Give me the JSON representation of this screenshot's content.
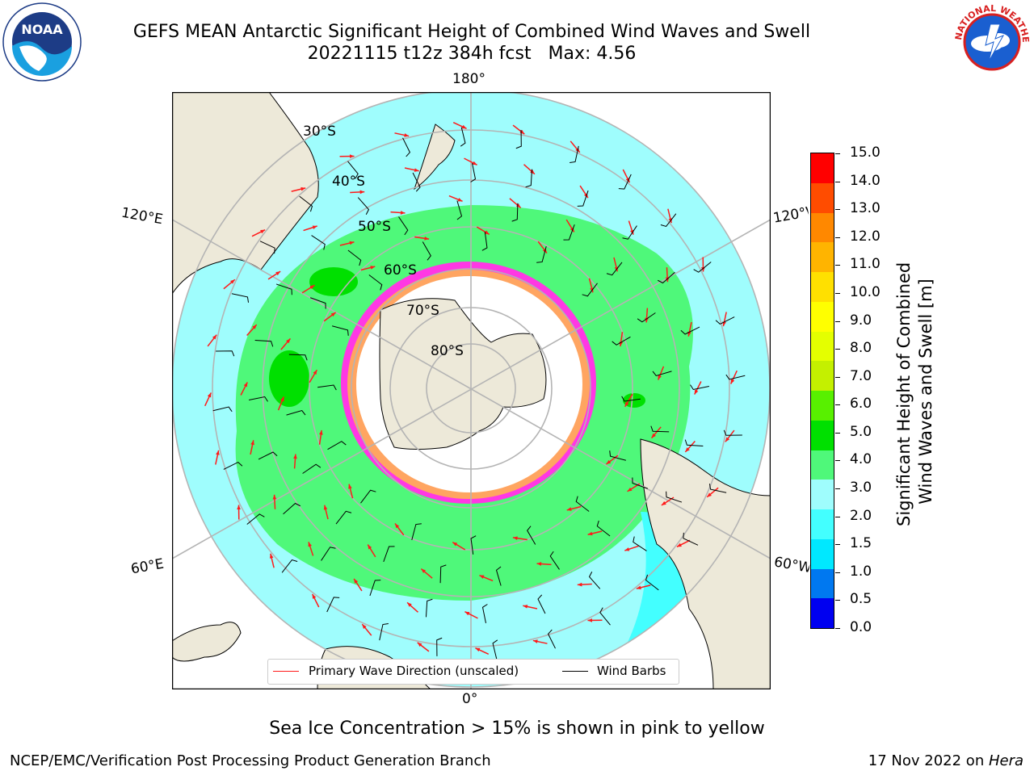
{
  "title_line1": "GEFS MEAN Antarctic Significant Height of Combined Wind Waves and Swell",
  "title_line2": "20221115 t12z 384h fcst   Max: 4.56",
  "logos": {
    "left": "NOAA",
    "right": "NATIONAL WEATHER SERVICE"
  },
  "map": {
    "projection": "south polar stereographic",
    "longitude_labels": {
      "top": "180°",
      "bottom": "0°",
      "left_upper": "120°E",
      "left_lower": "60°E",
      "right_upper": "120°W",
      "right_lower": "60°W"
    },
    "latitude_labels": [
      "30°S",
      "40°S",
      "50°S",
      "60°S",
      "70°S",
      "80°S"
    ],
    "colors": {
      "land": "#ede9d9",
      "ice_free_ocean_low": "#9ffdfd",
      "green_band": "#4ff87a",
      "sea_ice_pink": "#ff38e4",
      "sea_ice_yellow": "#ffb84a",
      "wave_arrows": "#ff1a1a",
      "wind_barbs": "#000000",
      "gridlines": "#b4b4b4"
    }
  },
  "colorbar": {
    "label": "Significant Height of Combined\nWind Waves and Swell [m]",
    "ticks": [
      "15.0",
      "14.0",
      "13.0",
      "12.0",
      "11.0",
      "10.0",
      "9.0",
      "8.0",
      "7.0",
      "6.0",
      "5.0",
      "4.0",
      "3.0",
      "2.0",
      "1.5",
      "1.0",
      "0.5",
      "0.0"
    ],
    "colors_bottom_to_top": [
      "#0000f0",
      "#0078f0",
      "#00e8ff",
      "#43ffff",
      "#9ffdfd",
      "#4ff87a",
      "#00e000",
      "#58f000",
      "#c4f000",
      "#e4ff00",
      "#ffff00",
      "#ffe000",
      "#ffb400",
      "#ff8800",
      "#ff4c00",
      "#ff0000"
    ]
  },
  "legend": {
    "wave_label": "Primary Wave Direction (unscaled)",
    "wind_label": "Wind Barbs"
  },
  "caption": "Sea Ice Concentration > 15% is shown in pink to yellow",
  "footer_left": "NCEP/EMC/Verification Post Processing Product Generation Branch",
  "footer_right_prefix": "17 Nov 2022 on ",
  "footer_right_machine": "Hera"
}
